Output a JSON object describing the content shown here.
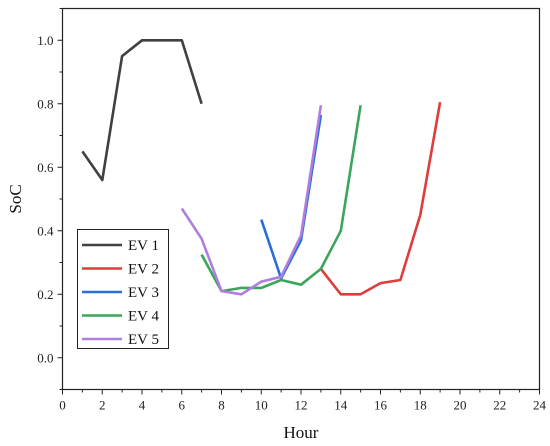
{
  "chart_data": {
    "type": "line",
    "title": "",
    "xlabel": "Hour",
    "ylabel": "SoC",
    "xlim": [
      0,
      24
    ],
    "ylim": [
      -0.1,
      1.1
    ],
    "xticks": [
      "0",
      "2",
      "4",
      "6",
      "8",
      "10",
      "12",
      "14",
      "16",
      "18",
      "20",
      "22",
      "24"
    ],
    "yticks": [
      "0.0",
      "0.2",
      "0.4",
      "0.6",
      "0.8",
      "1.0"
    ],
    "grid": false,
    "legend_position": "lower-left",
    "series": [
      {
        "name": "EV 1",
        "color": "#404040",
        "x": [
          1,
          2,
          3,
          4,
          5,
          6,
          7
        ],
        "y": [
          0.65,
          0.56,
          0.95,
          1.0,
          1.0,
          1.0,
          0.8
        ]
      },
      {
        "name": "EV 2",
        "color": "#e03c3c",
        "x": [
          13,
          14,
          15,
          16,
          17,
          18,
          19
        ],
        "y": [
          0.28,
          0.2,
          0.2,
          0.235,
          0.245,
          0.45,
          0.805
        ]
      },
      {
        "name": "EV 3",
        "color": "#2a6fd6",
        "x": [
          10,
          11,
          12,
          13
        ],
        "y": [
          0.435,
          0.25,
          0.37,
          0.765
        ]
      },
      {
        "name": "EV 4",
        "color": "#3aa55b",
        "x": [
          7,
          8,
          9,
          10,
          11,
          12,
          13,
          14,
          15
        ],
        "y": [
          0.325,
          0.21,
          0.22,
          0.22,
          0.245,
          0.23,
          0.28,
          0.4,
          0.795
        ]
      },
      {
        "name": "EV 5",
        "color": "#b07ee0",
        "x": [
          6,
          7,
          8,
          9,
          10,
          11,
          12,
          13
        ],
        "y": [
          0.47,
          0.375,
          0.21,
          0.2,
          0.24,
          0.255,
          0.385,
          0.795
        ]
      }
    ]
  }
}
